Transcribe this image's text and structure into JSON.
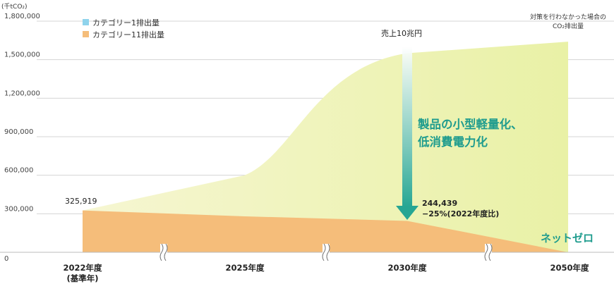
{
  "chart_data": {
    "type": "area",
    "unit_label": "(千tCO₂)",
    "categories": [
      "2022年度",
      "2025年度",
      "2030年度",
      "2050年度"
    ],
    "category_sublabels": [
      "(基準年)",
      "",
      "",
      ""
    ],
    "ylim": [
      0,
      1800000
    ],
    "yticks": [
      0,
      300000,
      600000,
      900000,
      1200000,
      1500000,
      1800000
    ],
    "ytick_labels": [
      "0",
      "300,000",
      "600,000",
      "900,000",
      "1,200,000",
      "1,500,000",
      "1,800,000"
    ],
    "series": [
      {
        "name": "カテゴリー1排出量",
        "color": "#8fd3ec",
        "values": [
          null,
          null,
          null,
          null
        ]
      },
      {
        "name": "カテゴリー11排出量",
        "color": "#f5bd7a",
        "values": [
          325919,
          280000,
          244439,
          0
        ]
      }
    ],
    "bau_series": {
      "name": "対策を行わなかった場合のCO₂排出量",
      "values": [
        325919,
        600000,
        1550000,
        1640000
      ]
    },
    "annotations": {
      "start_value": "325,919",
      "sales_label": "売上10兆円",
      "measure_line1": "製品の小型軽量化、",
      "measure_line2": "低消費電力化",
      "target_value": "244,439",
      "target_pct": "−25%(2022年度比)",
      "netzero": "ネットゼロ",
      "bau_line1": "対策を行わなかった場合の",
      "bau_line2": "CO₂排出量"
    },
    "colors": {
      "bau_fill": "#eef3b6",
      "category11": "#f5bd7a",
      "category1": "#8fd3ec",
      "accent_green": "#1f9c8e",
      "grid": "#d5d5d5"
    },
    "legend_position": "top-left",
    "grid": true
  }
}
